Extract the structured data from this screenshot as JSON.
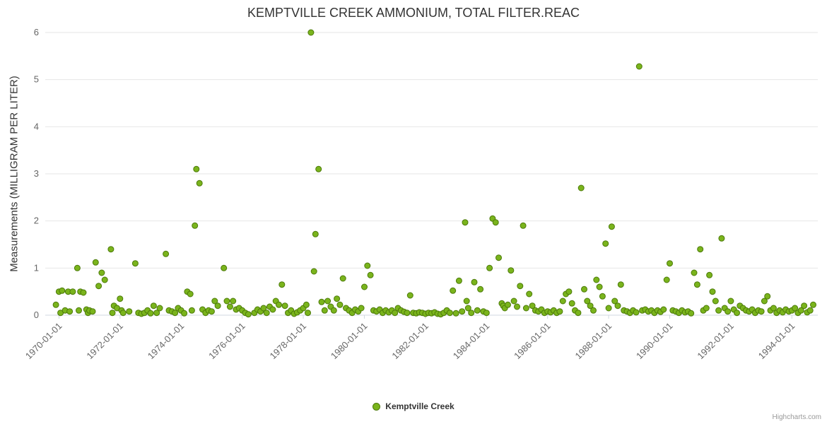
{
  "title": "KEMPTVILLE CREEK AMMONIUM, TOTAL FILTER.REAC",
  "credits": "Highcharts.com",
  "legend": {
    "label": "Kemptville Creek"
  },
  "colors": {
    "point_fill": "#7ab41c",
    "point_stroke": "#4c7a0a",
    "grid": "#e6e6e6",
    "axis_line": "#d0d8e0",
    "tick_label": "#666666",
    "title": "#333333",
    "credits": "#999999"
  },
  "chart_data": {
    "type": "scatter",
    "title": "KEMPTVILLE CREEK AMMONIUM, TOTAL FILTER.REAC",
    "xlabel": "",
    "ylabel": "Measurements (MILLIGRAM PER LITER)",
    "xlim": [
      1969.55,
      1994.85
    ],
    "ylim": [
      0,
      6
    ],
    "y_ticks": [
      0,
      1,
      2,
      3,
      4,
      5,
      6
    ],
    "x_ticks": [
      {
        "value": 1970,
        "label": "1970-01-01"
      },
      {
        "value": 1972,
        "label": "1972-01-01"
      },
      {
        "value": 1974,
        "label": "1974-01-01"
      },
      {
        "value": 1976,
        "label": "1976-01-01"
      },
      {
        "value": 1978,
        "label": "1978-01-01"
      },
      {
        "value": 1980,
        "label": "1980-01-01"
      },
      {
        "value": 1982,
        "label": "1982-01-01"
      },
      {
        "value": 1984,
        "label": "1984-01-01"
      },
      {
        "value": 1986,
        "label": "1986-01-01"
      },
      {
        "value": 1988,
        "label": "1988-01-01"
      },
      {
        "value": 1990,
        "label": "1990-01-01"
      },
      {
        "value": 1992,
        "label": "1992-01-01"
      },
      {
        "value": 1994,
        "label": "1994-01-01"
      }
    ],
    "grid": true,
    "legend_position": "bottom-center",
    "series": [
      {
        "name": "Kemptville Creek",
        "color": "#7ab41c",
        "border_color": "#4c7a0a",
        "points": [
          [
            1969.9,
            0.22
          ],
          [
            1970.0,
            0.5
          ],
          [
            1970.05,
            0.05
          ],
          [
            1970.1,
            0.52
          ],
          [
            1970.2,
            0.1
          ],
          [
            1970.3,
            0.5
          ],
          [
            1970.35,
            0.08
          ],
          [
            1970.45,
            0.5
          ],
          [
            1970.6,
            1.0
          ],
          [
            1970.65,
            0.1
          ],
          [
            1970.7,
            0.5
          ],
          [
            1970.8,
            0.48
          ],
          [
            1970.9,
            0.12
          ],
          [
            1970.95,
            0.05
          ],
          [
            1971.0,
            0.1
          ],
          [
            1971.1,
            0.08
          ],
          [
            1971.2,
            1.12
          ],
          [
            1971.3,
            0.62
          ],
          [
            1971.4,
            0.9
          ],
          [
            1971.5,
            0.75
          ],
          [
            1971.7,
            1.4
          ],
          [
            1971.75,
            0.05
          ],
          [
            1971.8,
            0.2
          ],
          [
            1971.9,
            0.15
          ],
          [
            1972.0,
            0.35
          ],
          [
            1972.05,
            0.1
          ],
          [
            1972.1,
            0.05
          ],
          [
            1972.3,
            0.08
          ],
          [
            1972.5,
            1.1
          ],
          [
            1972.6,
            0.05
          ],
          [
            1972.7,
            0.03
          ],
          [
            1972.8,
            0.05
          ],
          [
            1972.9,
            0.1
          ],
          [
            1973.0,
            0.04
          ],
          [
            1973.1,
            0.2
          ],
          [
            1973.2,
            0.05
          ],
          [
            1973.3,
            0.15
          ],
          [
            1973.5,
            1.3
          ],
          [
            1973.6,
            0.1
          ],
          [
            1973.7,
            0.08
          ],
          [
            1973.8,
            0.05
          ],
          [
            1973.9,
            0.15
          ],
          [
            1974.0,
            0.1
          ],
          [
            1974.1,
            0.04
          ],
          [
            1974.2,
            0.5
          ],
          [
            1974.3,
            0.45
          ],
          [
            1974.35,
            0.1
          ],
          [
            1974.45,
            1.9
          ],
          [
            1974.5,
            3.1
          ],
          [
            1974.6,
            2.8
          ],
          [
            1974.7,
            0.12
          ],
          [
            1974.8,
            0.05
          ],
          [
            1974.9,
            0.1
          ],
          [
            1975.0,
            0.08
          ],
          [
            1975.1,
            0.3
          ],
          [
            1975.2,
            0.2
          ],
          [
            1975.4,
            1.0
          ],
          [
            1975.5,
            0.3
          ],
          [
            1975.6,
            0.18
          ],
          [
            1975.7,
            0.3
          ],
          [
            1975.8,
            0.12
          ],
          [
            1975.9,
            0.15
          ],
          [
            1976.0,
            0.1
          ],
          [
            1976.1,
            0.05
          ],
          [
            1976.2,
            0.02
          ],
          [
            1976.4,
            0.05
          ],
          [
            1976.5,
            0.12
          ],
          [
            1976.6,
            0.08
          ],
          [
            1976.7,
            0.15
          ],
          [
            1976.8,
            0.05
          ],
          [
            1976.9,
            0.18
          ],
          [
            1977.0,
            0.12
          ],
          [
            1977.1,
            0.3
          ],
          [
            1977.2,
            0.22
          ],
          [
            1977.3,
            0.65
          ],
          [
            1977.4,
            0.2
          ],
          [
            1977.5,
            0.05
          ],
          [
            1977.6,
            0.1
          ],
          [
            1977.7,
            0.03
          ],
          [
            1977.8,
            0.06
          ],
          [
            1977.9,
            0.1
          ],
          [
            1978.0,
            0.15
          ],
          [
            1978.1,
            0.22
          ],
          [
            1978.15,
            0.05
          ],
          [
            1978.25,
            6.0
          ],
          [
            1978.35,
            0.93
          ],
          [
            1978.4,
            1.72
          ],
          [
            1978.5,
            3.1
          ],
          [
            1978.6,
            0.28
          ],
          [
            1978.7,
            0.1
          ],
          [
            1978.8,
            0.3
          ],
          [
            1978.9,
            0.18
          ],
          [
            1979.0,
            0.1
          ],
          [
            1979.1,
            0.35
          ],
          [
            1979.2,
            0.22
          ],
          [
            1979.3,
            0.78
          ],
          [
            1979.4,
            0.15
          ],
          [
            1979.5,
            0.1
          ],
          [
            1979.6,
            0.05
          ],
          [
            1979.7,
            0.12
          ],
          [
            1979.8,
            0.08
          ],
          [
            1979.9,
            0.15
          ],
          [
            1980.0,
            0.6
          ],
          [
            1980.1,
            1.05
          ],
          [
            1980.2,
            0.85
          ],
          [
            1980.3,
            0.1
          ],
          [
            1980.4,
            0.08
          ],
          [
            1980.5,
            0.12
          ],
          [
            1980.6,
            0.05
          ],
          [
            1980.7,
            0.1
          ],
          [
            1980.8,
            0.06
          ],
          [
            1980.9,
            0.1
          ],
          [
            1981.0,
            0.05
          ],
          [
            1981.1,
            0.15
          ],
          [
            1981.2,
            0.1
          ],
          [
            1981.3,
            0.07
          ],
          [
            1981.4,
            0.05
          ],
          [
            1981.5,
            0.42
          ],
          [
            1981.6,
            0.05
          ],
          [
            1981.7,
            0.04
          ],
          [
            1981.8,
            0.06
          ],
          [
            1981.9,
            0.05
          ],
          [
            1982.0,
            0.03
          ],
          [
            1982.1,
            0.05
          ],
          [
            1982.2,
            0.04
          ],
          [
            1982.3,
            0.06
          ],
          [
            1982.4,
            0.03
          ],
          [
            1982.5,
            0.02
          ],
          [
            1982.6,
            0.05
          ],
          [
            1982.7,
            0.1
          ],
          [
            1982.8,
            0.05
          ],
          [
            1982.9,
            0.52
          ],
          [
            1983.0,
            0.04
          ],
          [
            1983.1,
            0.73
          ],
          [
            1983.2,
            0.08
          ],
          [
            1983.3,
            1.97
          ],
          [
            1983.35,
            0.3
          ],
          [
            1983.4,
            0.15
          ],
          [
            1983.5,
            0.05
          ],
          [
            1983.6,
            0.7
          ],
          [
            1983.7,
            0.1
          ],
          [
            1983.8,
            0.55
          ],
          [
            1983.9,
            0.08
          ],
          [
            1984.0,
            0.05
          ],
          [
            1984.1,
            1.0
          ],
          [
            1984.2,
            2.05
          ],
          [
            1984.3,
            1.97
          ],
          [
            1984.4,
            1.22
          ],
          [
            1984.5,
            0.25
          ],
          [
            1984.55,
            0.2
          ],
          [
            1984.6,
            0.15
          ],
          [
            1984.7,
            0.22
          ],
          [
            1984.8,
            0.95
          ],
          [
            1984.9,
            0.3
          ],
          [
            1985.0,
            0.18
          ],
          [
            1985.1,
            0.62
          ],
          [
            1985.2,
            1.9
          ],
          [
            1985.3,
            0.15
          ],
          [
            1985.4,
            0.45
          ],
          [
            1985.5,
            0.2
          ],
          [
            1985.6,
            0.1
          ],
          [
            1985.7,
            0.08
          ],
          [
            1985.8,
            0.12
          ],
          [
            1985.9,
            0.05
          ],
          [
            1986.0,
            0.08
          ],
          [
            1986.1,
            0.06
          ],
          [
            1986.2,
            0.1
          ],
          [
            1986.3,
            0.05
          ],
          [
            1986.4,
            0.08
          ],
          [
            1986.5,
            0.3
          ],
          [
            1986.6,
            0.45
          ],
          [
            1986.7,
            0.5
          ],
          [
            1986.8,
            0.25
          ],
          [
            1986.9,
            0.1
          ],
          [
            1987.0,
            0.05
          ],
          [
            1987.1,
            2.7
          ],
          [
            1987.2,
            0.55
          ],
          [
            1987.3,
            0.3
          ],
          [
            1987.4,
            0.2
          ],
          [
            1987.5,
            0.1
          ],
          [
            1987.6,
            0.75
          ],
          [
            1987.7,
            0.6
          ],
          [
            1987.8,
            0.4
          ],
          [
            1987.9,
            1.52
          ],
          [
            1988.0,
            0.15
          ],
          [
            1988.1,
            1.88
          ],
          [
            1988.2,
            0.3
          ],
          [
            1988.3,
            0.2
          ],
          [
            1988.4,
            0.65
          ],
          [
            1988.5,
            0.1
          ],
          [
            1988.6,
            0.08
          ],
          [
            1988.7,
            0.05
          ],
          [
            1988.8,
            0.1
          ],
          [
            1988.9,
            0.06
          ],
          [
            1989.0,
            5.28
          ],
          [
            1989.1,
            0.1
          ],
          [
            1989.2,
            0.12
          ],
          [
            1989.3,
            0.08
          ],
          [
            1989.4,
            0.1
          ],
          [
            1989.5,
            0.05
          ],
          [
            1989.6,
            0.1
          ],
          [
            1989.7,
            0.07
          ],
          [
            1989.8,
            0.12
          ],
          [
            1989.9,
            0.75
          ],
          [
            1990.0,
            1.1
          ],
          [
            1990.1,
            0.1
          ],
          [
            1990.2,
            0.08
          ],
          [
            1990.3,
            0.05
          ],
          [
            1990.4,
            0.1
          ],
          [
            1990.5,
            0.06
          ],
          [
            1990.6,
            0.08
          ],
          [
            1990.7,
            0.04
          ],
          [
            1990.8,
            0.9
          ],
          [
            1990.9,
            0.65
          ],
          [
            1991.0,
            1.4
          ],
          [
            1991.1,
            0.1
          ],
          [
            1991.2,
            0.15
          ],
          [
            1991.3,
            0.85
          ],
          [
            1991.4,
            0.5
          ],
          [
            1991.5,
            0.3
          ],
          [
            1991.6,
            0.1
          ],
          [
            1991.7,
            1.63
          ],
          [
            1991.8,
            0.15
          ],
          [
            1991.9,
            0.08
          ],
          [
            1992.0,
            0.3
          ],
          [
            1992.1,
            0.12
          ],
          [
            1992.2,
            0.05
          ],
          [
            1992.3,
            0.2
          ],
          [
            1992.4,
            0.15
          ],
          [
            1992.5,
            0.1
          ],
          [
            1992.6,
            0.08
          ],
          [
            1992.7,
            0.12
          ],
          [
            1992.8,
            0.05
          ],
          [
            1992.9,
            0.1
          ],
          [
            1993.0,
            0.08
          ],
          [
            1993.1,
            0.3
          ],
          [
            1993.2,
            0.4
          ],
          [
            1993.3,
            0.1
          ],
          [
            1993.4,
            0.15
          ],
          [
            1993.5,
            0.05
          ],
          [
            1993.6,
            0.1
          ],
          [
            1993.7,
            0.06
          ],
          [
            1993.8,
            0.12
          ],
          [
            1993.9,
            0.08
          ],
          [
            1994.0,
            0.1
          ],
          [
            1994.1,
            0.15
          ],
          [
            1994.2,
            0.05
          ],
          [
            1994.3,
            0.1
          ],
          [
            1994.4,
            0.2
          ],
          [
            1994.5,
            0.06
          ],
          [
            1994.6,
            0.1
          ],
          [
            1994.7,
            0.22
          ]
        ]
      }
    ]
  }
}
